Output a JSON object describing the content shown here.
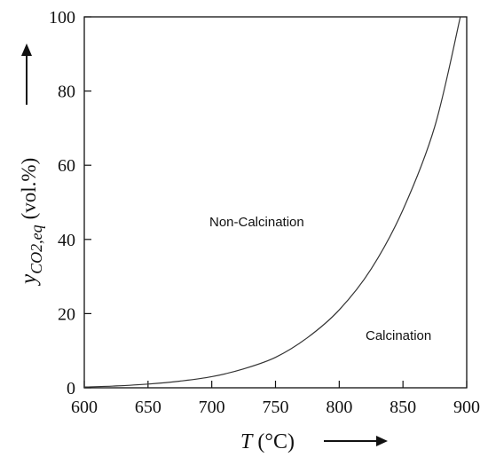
{
  "chart_data": {
    "type": "line",
    "xlabel_symbol": "T",
    "xlabel_unit": "(°C)",
    "ylabel_symbol": "y",
    "ylabel_subscript": "CO2,eq",
    "ylabel_unit": "(vol.%)",
    "xlim": [
      600,
      900
    ],
    "ylim": [
      0,
      100
    ],
    "x_ticks": [
      600,
      650,
      700,
      750,
      800,
      850,
      900
    ],
    "y_ticks": [
      0,
      20,
      40,
      60,
      80,
      100
    ],
    "grid": false,
    "annotations": {
      "upper_region": "Non-Calcination",
      "lower_region": "Calcination"
    },
    "series": [
      {
        "x": [
          600,
          625,
          650,
          675,
          700,
          725,
          750,
          775,
          800,
          825,
          850,
          875,
          895
        ],
        "y": [
          0.2,
          0.5,
          1.0,
          1.8,
          3.0,
          5.1,
          8.2,
          13.5,
          21.0,
          32.0,
          48.0,
          70.5,
          100
        ]
      }
    ]
  }
}
